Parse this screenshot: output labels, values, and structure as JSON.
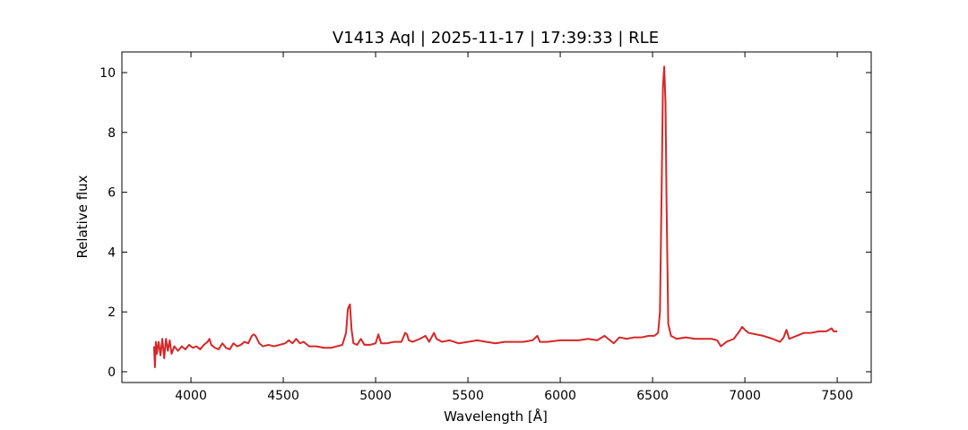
{
  "chart_data": {
    "type": "line",
    "title": "V1413 Aql | 2025-11-17 | 17:39:33 | RLE",
    "xlabel": "Wavelength [Å]",
    "ylabel": "Relative flux",
    "color": "#d62728",
    "x": [
      3800,
      3805,
      3810,
      3815,
      3825,
      3835,
      3845,
      3855,
      3865,
      3875,
      3885,
      3895,
      3910,
      3930,
      3950,
      3970,
      3990,
      4010,
      4030,
      4050,
      4070,
      4090,
      4100,
      4110,
      4130,
      4150,
      4170,
      4190,
      4210,
      4230,
      4250,
      4270,
      4290,
      4310,
      4330,
      4340,
      4350,
      4370,
      4390,
      4420,
      4450,
      4480,
      4510,
      4530,
      4550,
      4570,
      4590,
      4610,
      4640,
      4680,
      4720,
      4760,
      4790,
      4820,
      4840,
      4850,
      4861,
      4870,
      4880,
      4900,
      4920,
      4940,
      4970,
      5000,
      5015,
      5030,
      5060,
      5100,
      5140,
      5160,
      5170,
      5180,
      5200,
      5240,
      5270,
      5290,
      5316,
      5330,
      5360,
      5400,
      5450,
      5500,
      5550,
      5600,
      5650,
      5700,
      5750,
      5800,
      5850,
      5876,
      5890,
      5930,
      6000,
      6050,
      6100,
      6150,
      6200,
      6240,
      6260,
      6290,
      6320,
      6360,
      6400,
      6440,
      6480,
      6510,
      6530,
      6540,
      6550,
      6556,
      6563,
      6570,
      6576,
      6585,
      6600,
      6630,
      6680,
      6730,
      6780,
      6820,
      6850,
      6870,
      6900,
      6940,
      6970,
      6985,
      7000,
      7020,
      7060,
      7100,
      7150,
      7190,
      7210,
      7225,
      7240,
      7280,
      7320,
      7360,
      7400,
      7440,
      7470,
      7480,
      7500
    ],
    "values": [
      0.85,
      0.15,
      1.0,
      0.6,
      1.0,
      0.55,
      1.1,
      0.45,
      1.1,
      0.7,
      1.05,
      0.6,
      0.85,
      0.7,
      0.85,
      0.75,
      0.9,
      0.8,
      0.85,
      0.75,
      0.9,
      1.0,
      1.1,
      0.9,
      0.8,
      0.75,
      0.95,
      0.8,
      0.75,
      0.95,
      0.85,
      0.9,
      1.0,
      0.95,
      1.2,
      1.25,
      1.2,
      0.95,
      0.85,
      0.9,
      0.85,
      0.9,
      0.95,
      1.05,
      0.95,
      1.1,
      0.95,
      1.0,
      0.85,
      0.85,
      0.8,
      0.8,
      0.85,
      0.9,
      1.3,
      2.1,
      2.25,
      1.4,
      0.95,
      0.9,
      1.1,
      0.9,
      0.9,
      0.95,
      1.25,
      0.95,
      0.95,
      1.0,
      1.0,
      1.3,
      1.25,
      1.05,
      1.0,
      1.1,
      1.2,
      1.0,
      1.3,
      1.1,
      1.0,
      1.05,
      0.95,
      1.0,
      1.05,
      1.0,
      0.95,
      1.0,
      1.0,
      1.0,
      1.05,
      1.2,
      1.0,
      1.0,
      1.05,
      1.05,
      1.05,
      1.1,
      1.05,
      1.2,
      1.1,
      0.95,
      1.15,
      1.1,
      1.15,
      1.15,
      1.2,
      1.2,
      1.3,
      2.0,
      6.5,
      9.5,
      10.2,
      9.0,
      5.5,
      1.6,
      1.2,
      1.1,
      1.15,
      1.1,
      1.1,
      1.1,
      1.05,
      0.85,
      1.0,
      1.1,
      1.35,
      1.5,
      1.4,
      1.3,
      1.25,
      1.2,
      1.1,
      1.0,
      1.15,
      1.4,
      1.1,
      1.2,
      1.3,
      1.3,
      1.35,
      1.35,
      1.45,
      1.35,
      1.35
    ],
    "xlim": [
      3626,
      7684
    ],
    "ylim": [
      -0.36,
      10.69
    ],
    "xticks": [
      4000,
      4500,
      5000,
      5500,
      6000,
      6500,
      7000,
      7500
    ],
    "yticks": [
      0,
      2,
      4,
      6,
      8,
      10
    ]
  }
}
